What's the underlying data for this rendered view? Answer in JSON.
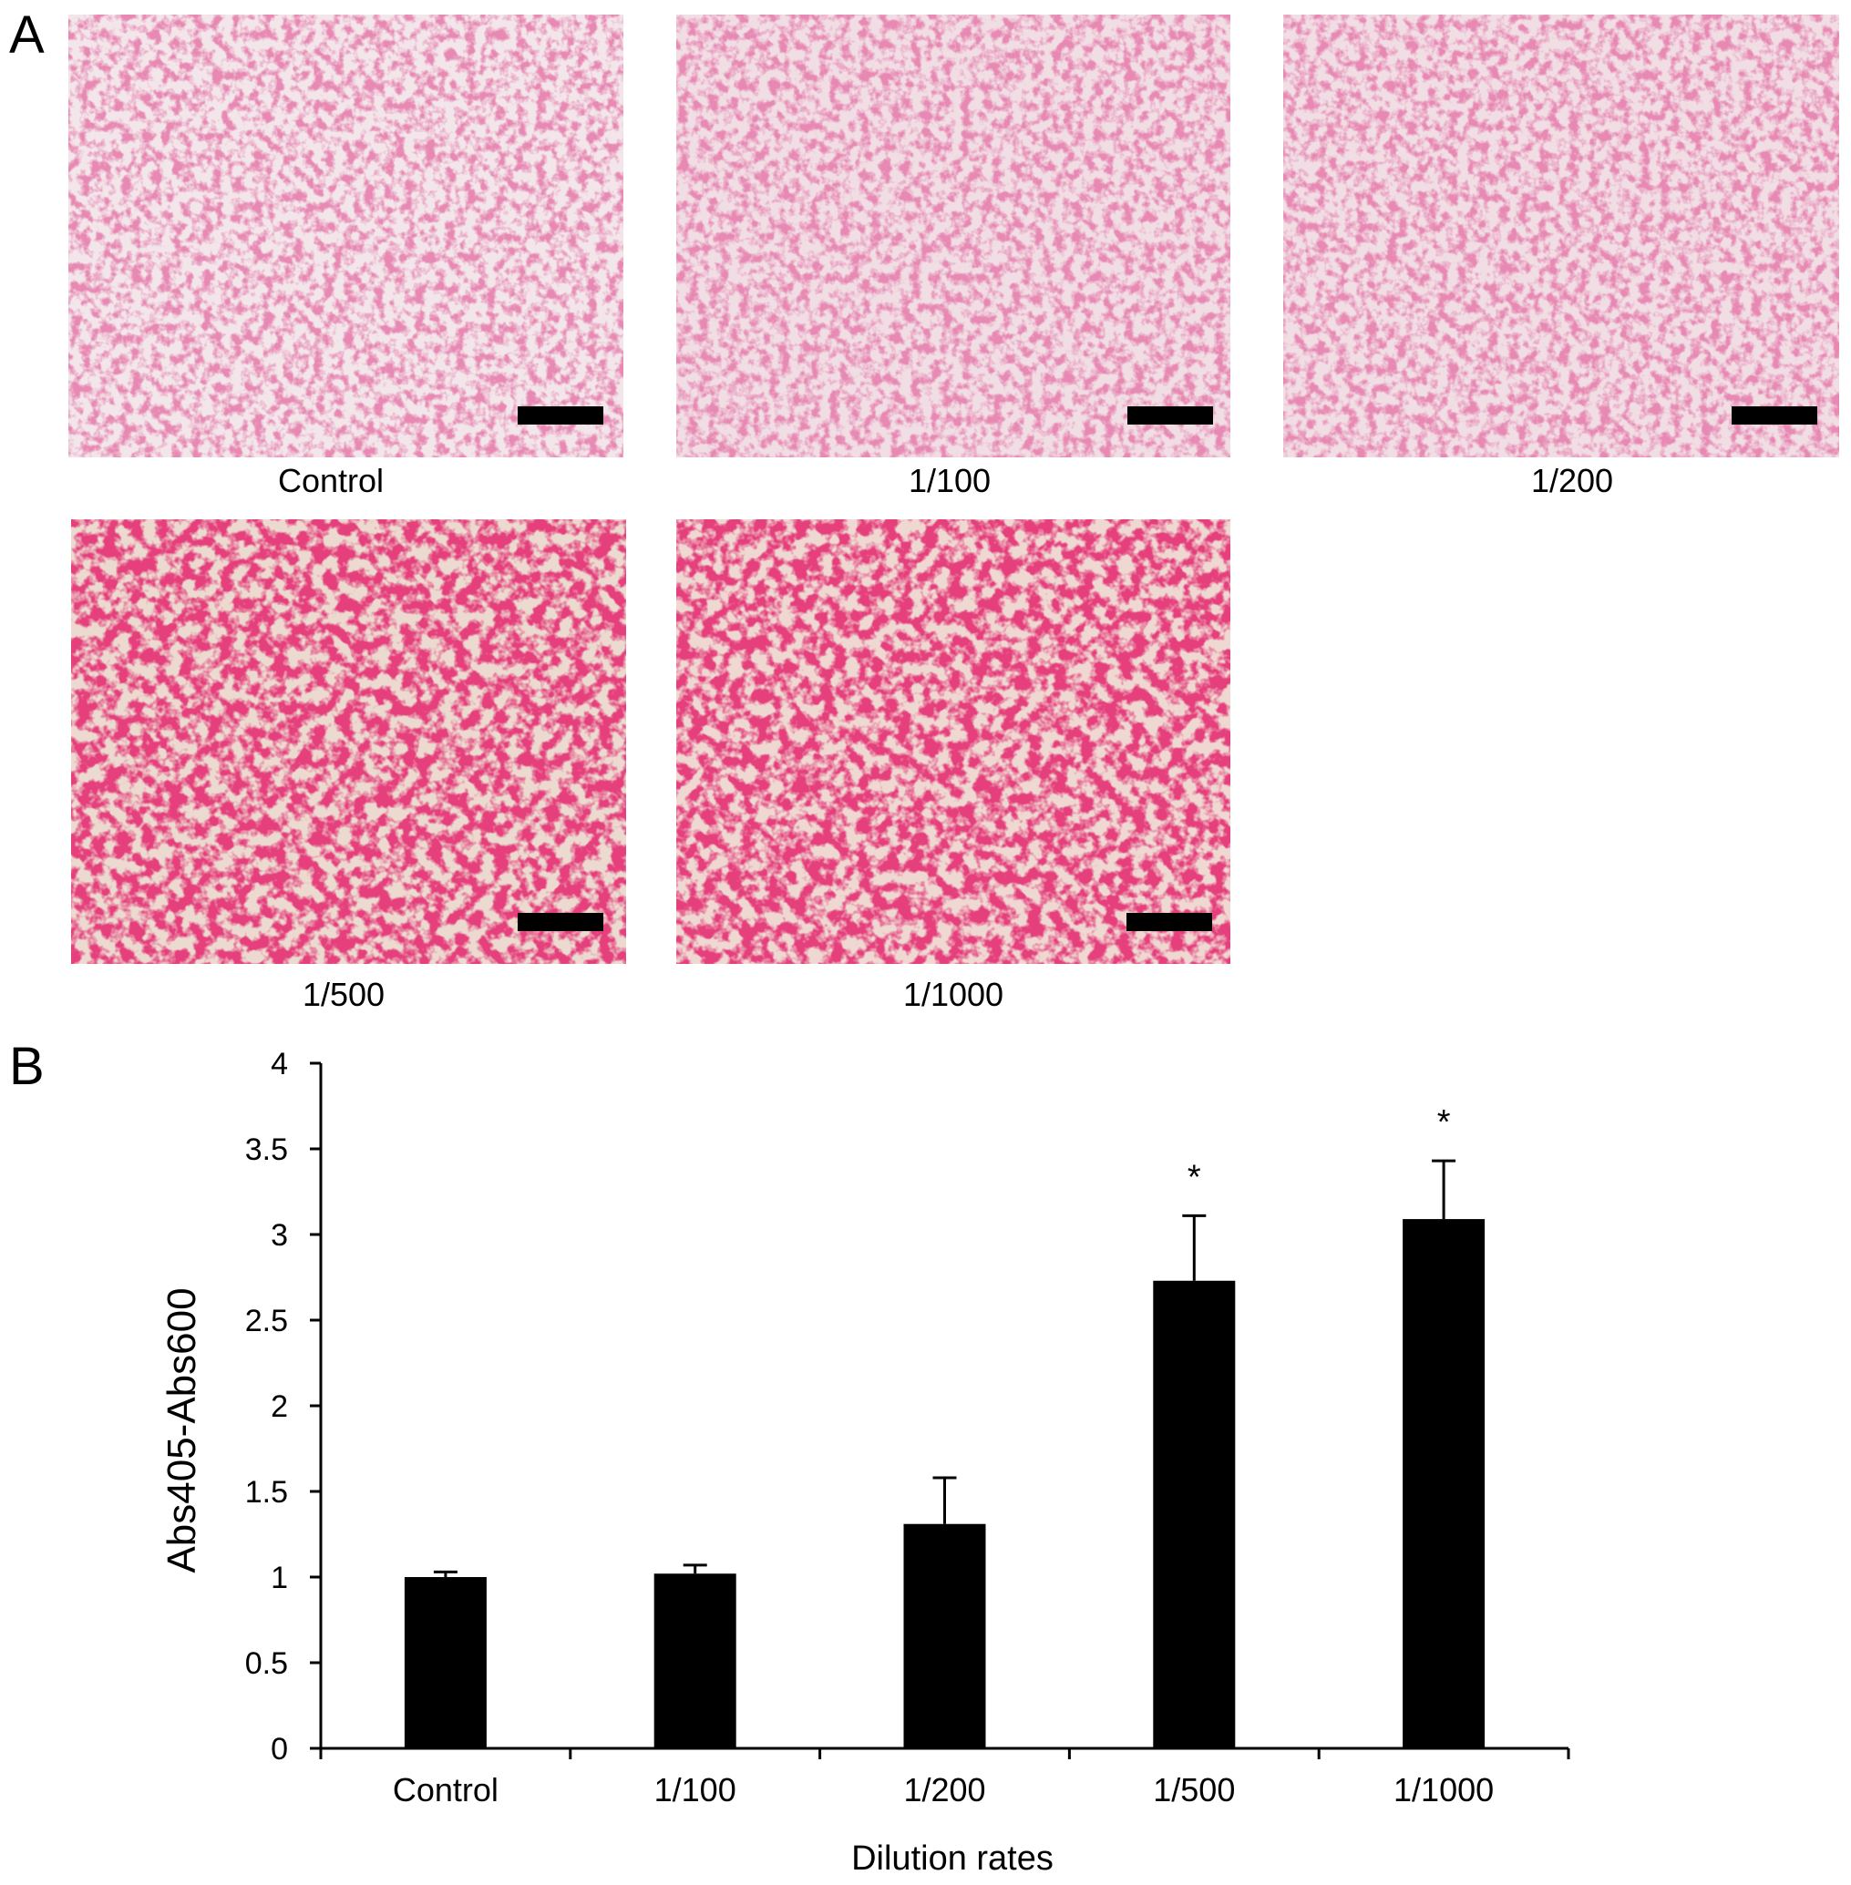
{
  "panel_a": {
    "label": "A",
    "captions": [
      "Control",
      "1/100",
      "1/200",
      "1/500",
      "1/1000"
    ]
  },
  "panel_b": {
    "label": "B"
  },
  "chart_data": {
    "type": "bar",
    "x_label": "Dilution rates",
    "y_label": "Abs405-Abs600",
    "categories": [
      "Control",
      "1/100",
      "1/200",
      "1/500",
      "1/1000"
    ],
    "values": [
      1.0,
      1.02,
      1.31,
      2.73,
      3.09
    ],
    "errors": [
      0.03,
      0.05,
      0.27,
      0.38,
      0.34
    ],
    "significance": [
      null,
      null,
      null,
      "*",
      "*"
    ],
    "color": "#000000",
    "ylim": [
      0,
      4
    ],
    "yticks": [
      0,
      0.5,
      1,
      1.5,
      2,
      2.5,
      3,
      3.5,
      4
    ]
  }
}
